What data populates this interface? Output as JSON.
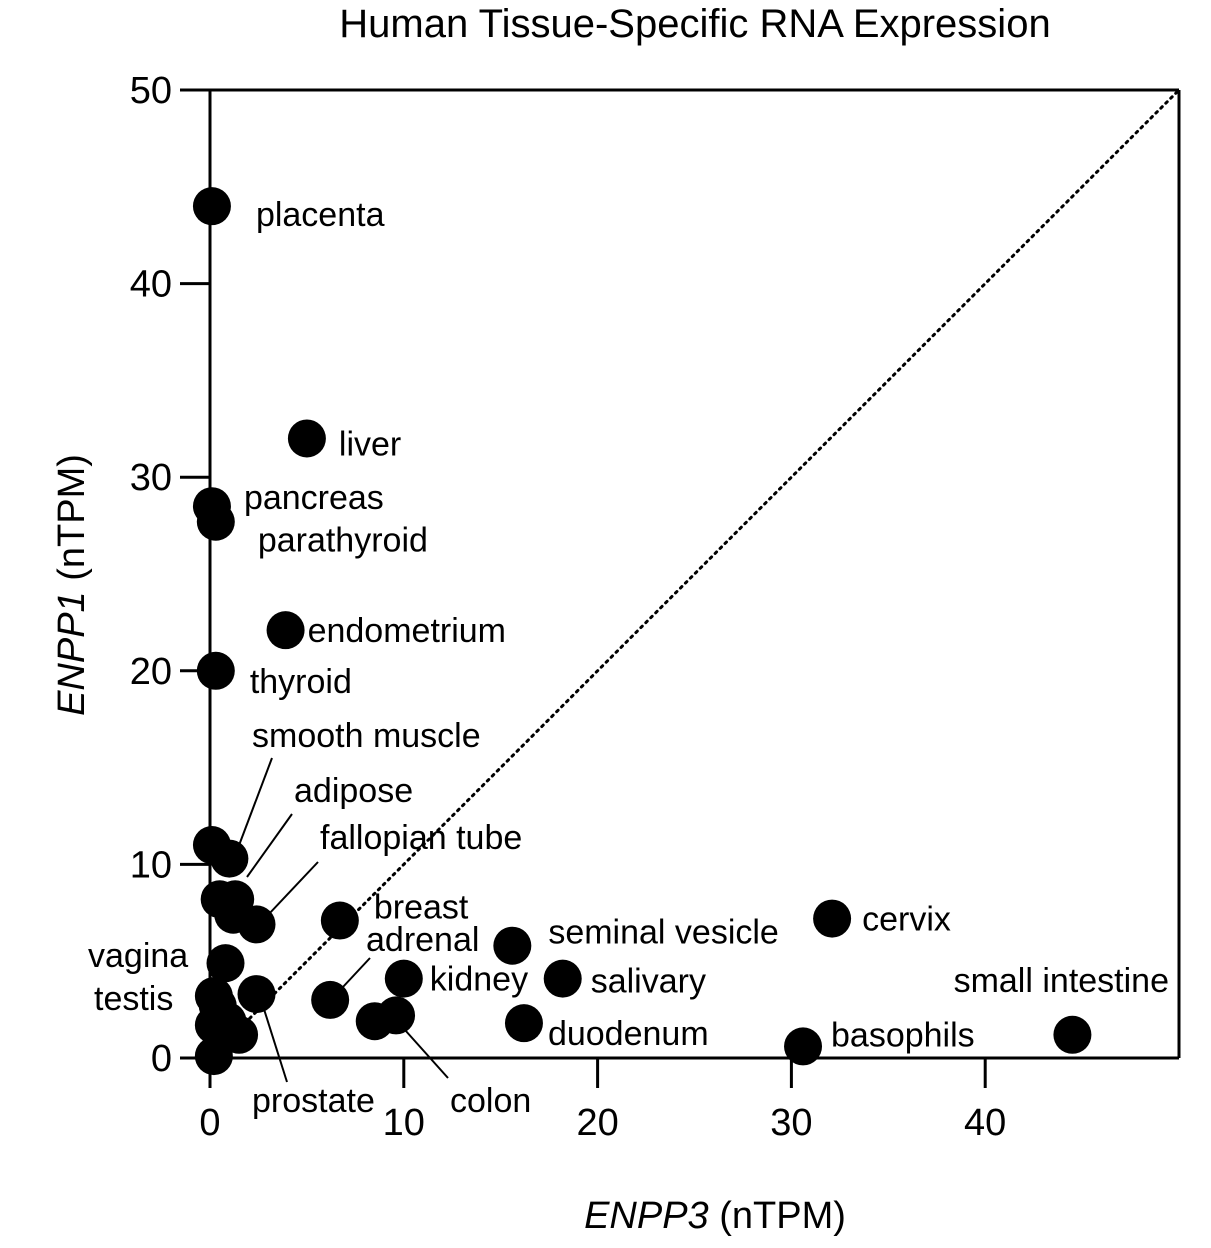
{
  "chart_data": {
    "type": "scatter",
    "title": "Human Tissue-Specific RNA Expression",
    "xlabel": {
      "italic": "ENPP3",
      "unit": " (nTPM)"
    },
    "ylabel": {
      "italic": "ENPP1",
      "unit": " (nTPM)"
    },
    "xlim": [
      0,
      50
    ],
    "ylim": [
      0,
      50
    ],
    "xticks": [
      0,
      10,
      20,
      30,
      40
    ],
    "yticks": [
      0,
      10,
      20,
      30,
      40,
      50
    ],
    "diagonal_reference_line": "dotted y = x",
    "grid": false,
    "color": "#000000",
    "points": [
      {
        "label": "placenta",
        "x": 0.1,
        "y": 44.0
      },
      {
        "label": "liver",
        "x": 5.0,
        "y": 32.0
      },
      {
        "label": "pancreas",
        "x": 0.1,
        "y": 28.5
      },
      {
        "label": "parathyroid",
        "x": 0.3,
        "y": 27.7
      },
      {
        "label": "endometrium",
        "x": 3.9,
        "y": 22.1
      },
      {
        "label": "thyroid",
        "x": 0.3,
        "y": 20.0
      },
      {
        "label": "smooth muscle",
        "x": 0.1,
        "y": 11.0
      },
      {
        "label": "adipose",
        "x": 1.0,
        "y": 10.3
      },
      {
        "label": "",
        "x": 0.5,
        "y": 8.2
      },
      {
        "label": "",
        "x": 1.3,
        "y": 8.2
      },
      {
        "label": "",
        "x": 1.2,
        "y": 7.4
      },
      {
        "label": "fallopian tube",
        "x": 2.4,
        "y": 6.9
      },
      {
        "label": "breast",
        "x": 6.7,
        "y": 7.1
      },
      {
        "label": "vagina",
        "x": 0.8,
        "y": 4.9
      },
      {
        "label": "prostate",
        "x": 2.4,
        "y": 3.3
      },
      {
        "label": "testis",
        "x": 0.2,
        "y": 3.2
      },
      {
        "label": "",
        "x": 0.4,
        "y": 2.7
      },
      {
        "label": "",
        "x": 0.2,
        "y": 1.7
      },
      {
        "label": "",
        "x": 0.9,
        "y": 1.9
      },
      {
        "label": "",
        "x": 1.5,
        "y": 1.2
      },
      {
        "label": "",
        "x": 0.6,
        "y": 1.1
      },
      {
        "label": "",
        "x": 0.2,
        "y": 0.1
      },
      {
        "label": "adrenal",
        "x": 6.2,
        "y": 3.0
      },
      {
        "label": "",
        "x": 8.5,
        "y": 1.9
      },
      {
        "label": "colon",
        "x": 9.6,
        "y": 2.2
      },
      {
        "label": "kidney",
        "x": 10.0,
        "y": 4.1
      },
      {
        "label": "seminal vesicle",
        "x": 15.6,
        "y": 5.8
      },
      {
        "label": "salivary",
        "x": 18.2,
        "y": 4.1
      },
      {
        "label": "duodenum",
        "x": 16.2,
        "y": 1.8
      },
      {
        "label": "cervix",
        "x": 32.1,
        "y": 7.2
      },
      {
        "label": "basophils",
        "x": 30.6,
        "y": 0.6
      },
      {
        "label": "small intestine",
        "x": 44.5,
        "y": 1.2
      }
    ]
  }
}
